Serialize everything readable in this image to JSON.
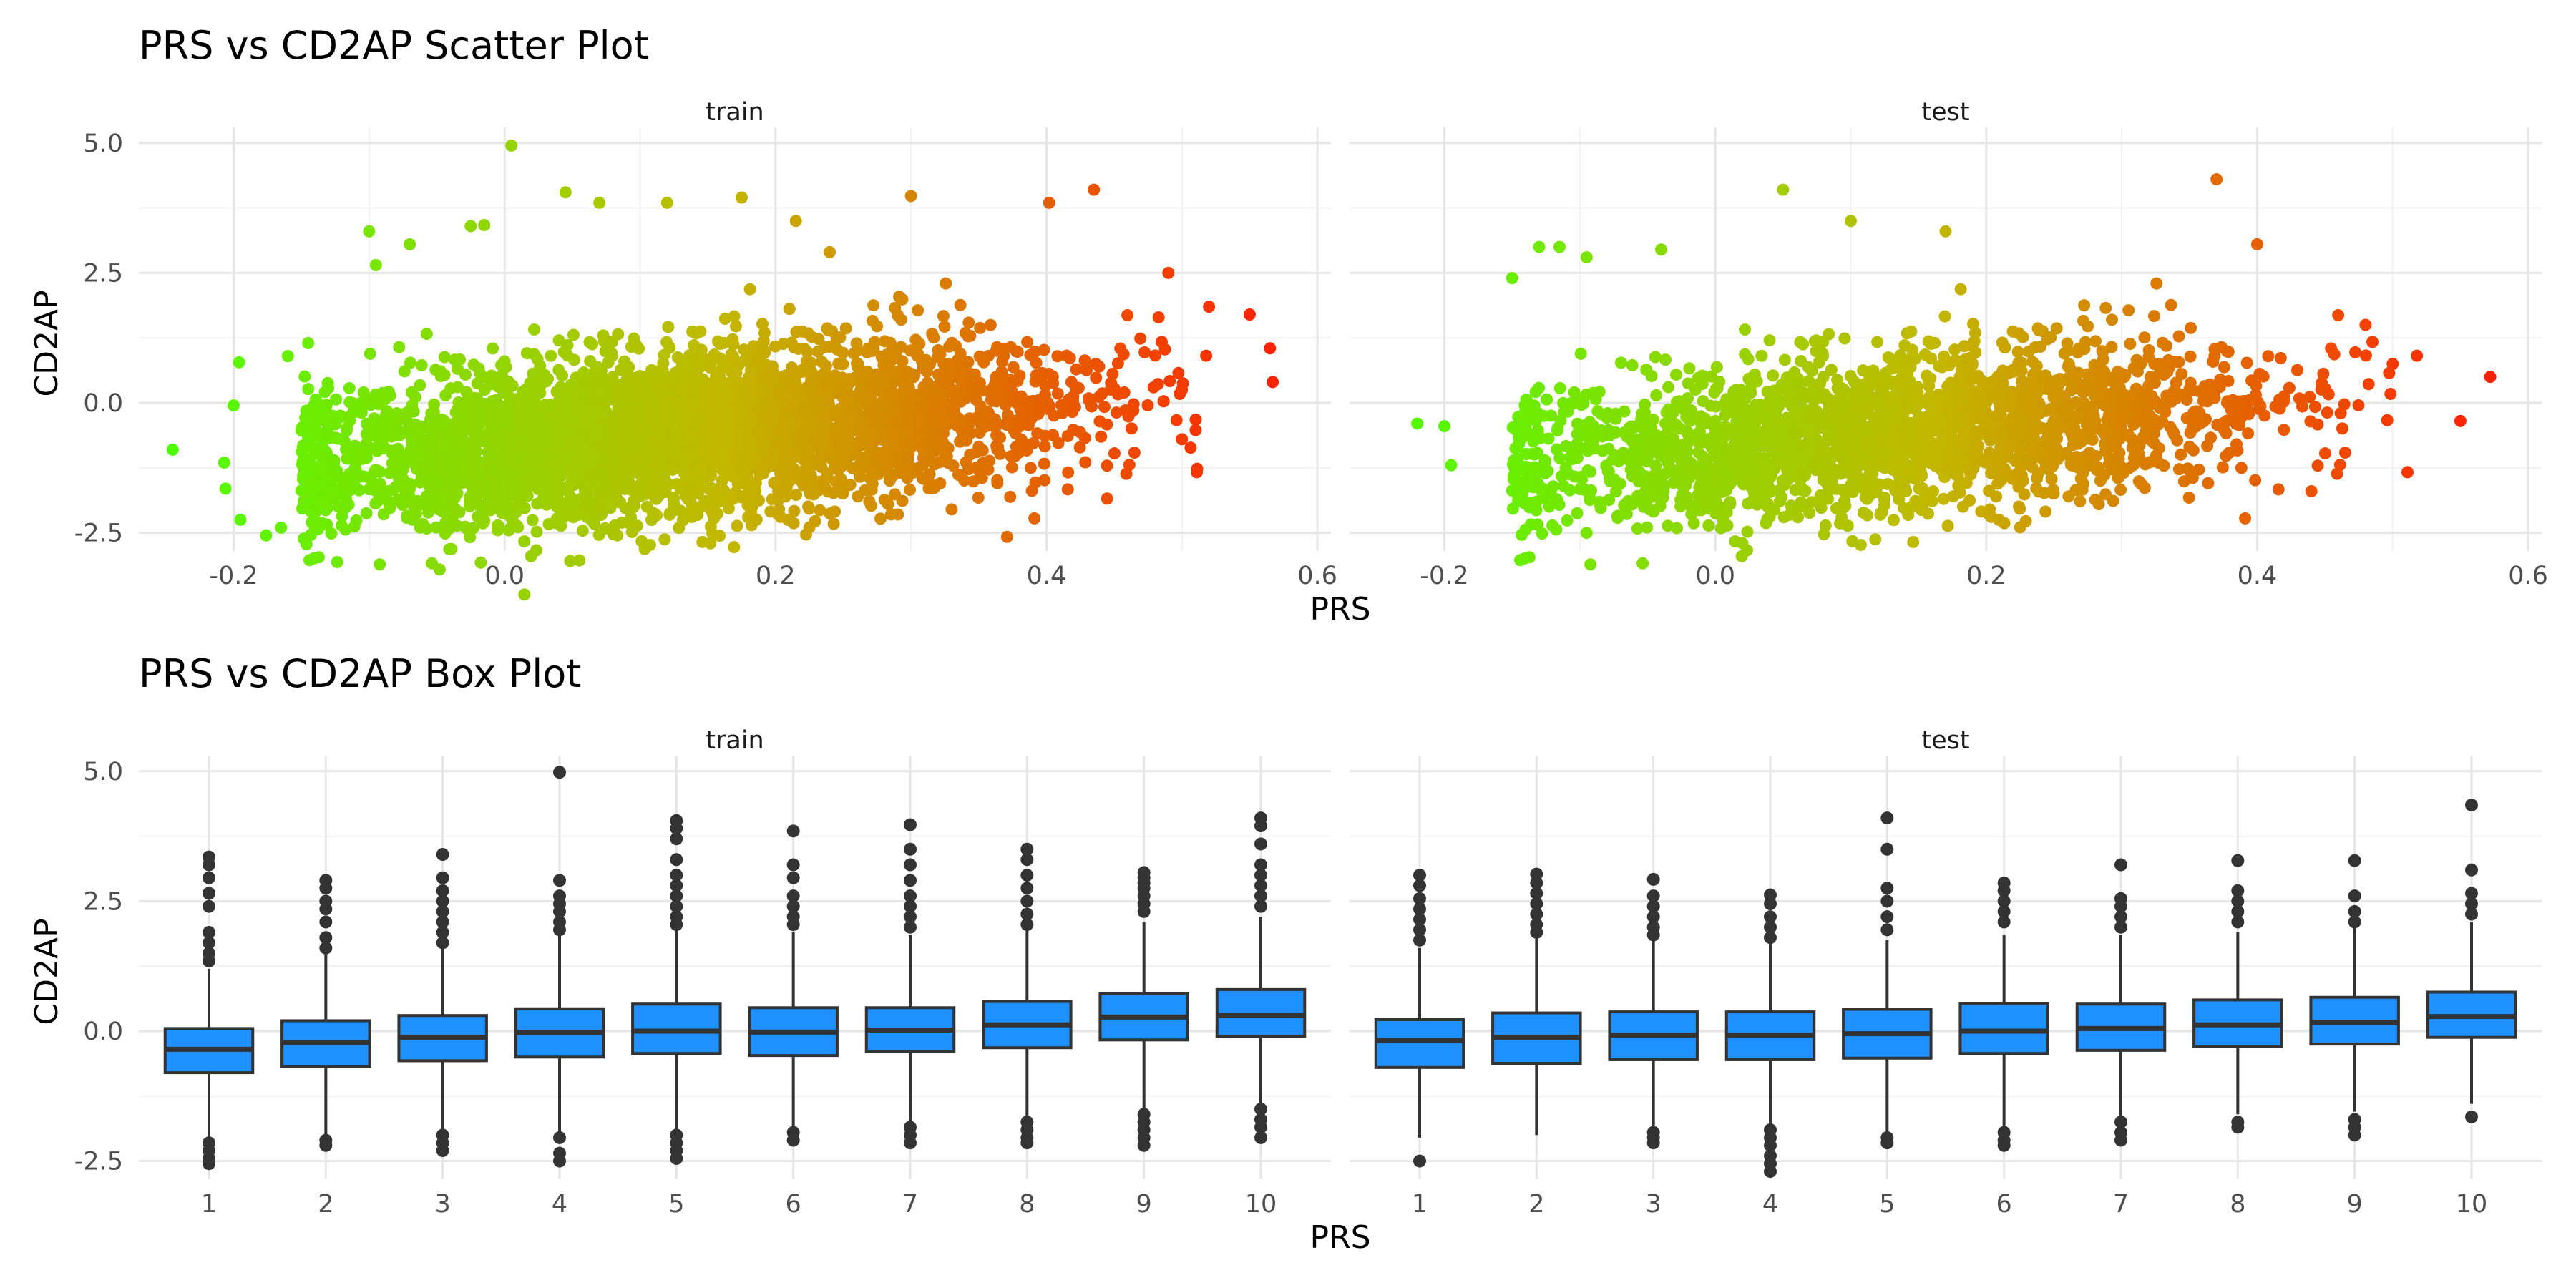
{
  "chart_data": [
    {
      "type": "scatter",
      "title": "PRS vs CD2AP Scatter Plot",
      "xlabel": "PRS",
      "ylabel": "CD2AP",
      "facets": [
        "train",
        "test"
      ],
      "xlim": [
        -0.27,
        0.61
      ],
      "ylim": [
        -2.85,
        5.3
      ],
      "x_ticks": [
        -0.2,
        0.0,
        0.2,
        0.4,
        0.6
      ],
      "x_tick_labels": [
        "-0.2",
        "0.0",
        "0.2",
        "0.4",
        "0.6"
      ],
      "y_ticks": [
        -2.5,
        0.0,
        2.5,
        5.0
      ],
      "y_tick_labels": [
        "-2.5",
        "0.0",
        "2.5",
        "5.0"
      ],
      "grid": true,
      "legend": "none",
      "color_scale": {
        "low": "#4cff00",
        "mid": "#c2b800",
        "high": "#ff2000",
        "mapped_to": "PRS"
      },
      "points": {
        "train": [
          [
            -0.245,
            -0.9
          ],
          [
            -0.207,
            -1.15
          ],
          [
            -0.206,
            -1.65
          ],
          [
            -0.2,
            -0.05
          ],
          [
            -0.196,
            0.78
          ],
          [
            -0.195,
            -2.25
          ],
          [
            -0.176,
            -2.55
          ],
          [
            -0.165,
            -2.4
          ],
          [
            -0.16,
            0.9
          ],
          [
            -0.145,
            1.15
          ],
          [
            -0.1,
            3.3
          ],
          [
            -0.095,
            2.65
          ],
          [
            -0.07,
            3.05
          ],
          [
            -0.025,
            3.4
          ],
          [
            -0.015,
            3.42
          ],
          [
            0.005,
            4.95
          ],
          [
            -0.005,
            -2.45
          ],
          [
            0.045,
            4.05
          ],
          [
            0.08,
            -2.45
          ],
          [
            0.07,
            3.85
          ],
          [
            0.12,
            3.85
          ],
          [
            0.175,
            3.95
          ],
          [
            0.215,
            3.5
          ],
          [
            0.24,
            2.9
          ],
          [
            0.3,
            3.98
          ],
          [
            0.33,
            -2.05
          ],
          [
            0.402,
            3.85
          ],
          [
            0.435,
            4.1
          ],
          [
            0.49,
            2.5
          ],
          [
            0.5,
            -0.7
          ],
          [
            0.52,
            1.85
          ],
          [
            0.55,
            1.7
          ],
          [
            0.565,
            1.05
          ],
          [
            0.567,
            0.4
          ]
        ],
        "test": [
          [
            -0.22,
            -0.4
          ],
          [
            -0.2,
            -0.45
          ],
          [
            -0.195,
            -1.2
          ],
          [
            -0.15,
            2.4
          ],
          [
            -0.13,
            3.0
          ],
          [
            -0.115,
            3.0
          ],
          [
            -0.095,
            2.8
          ],
          [
            -0.095,
            -2.5
          ],
          [
            -0.04,
            2.95
          ],
          [
            0.02,
            -2.7
          ],
          [
            0.05,
            4.1
          ],
          [
            0.1,
            3.5
          ],
          [
            0.17,
            3.3
          ],
          [
            0.37,
            4.3
          ],
          [
            0.4,
            3.05
          ],
          [
            0.44,
            -1.7
          ],
          [
            0.48,
            1.5
          ],
          [
            0.5,
            0.75
          ],
          [
            0.55,
            -0.35
          ],
          [
            0.572,
            0.5
          ]
        ]
      }
    },
    {
      "type": "box",
      "title": "PRS vs CD2AP Box Plot",
      "xlabel": "PRS",
      "ylabel": "CD2AP",
      "facets": [
        "train",
        "test"
      ],
      "categories": [
        "1",
        "2",
        "3",
        "4",
        "5",
        "6",
        "7",
        "8",
        "9",
        "10"
      ],
      "ylim": [
        -2.85,
        5.3
      ],
      "y_ticks": [
        -2.5,
        0.0,
        2.5,
        5.0
      ],
      "y_tick_labels": [
        "-2.5",
        "0.0",
        "2.5",
        "5.0"
      ],
      "fill_color": "#1e90ff",
      "grid": true,
      "boxes": {
        "train": [
          {
            "q1": -0.8,
            "median": -0.35,
            "q3": 0.05,
            "wlow": -2.05,
            "whigh": 1.2,
            "outliers": [
              3.35,
              3.2,
              2.95,
              2.65,
              2.4,
              1.9,
              1.7,
              1.5,
              1.35,
              -2.15,
              -2.3,
              -2.45,
              -2.55
            ]
          },
          {
            "q1": -0.68,
            "median": -0.22,
            "q3": 0.2,
            "wlow": -2.05,
            "whigh": 1.5,
            "outliers": [
              2.9,
              2.75,
              2.5,
              2.35,
              2.1,
              1.8,
              1.6,
              -2.1,
              -2.2
            ]
          },
          {
            "q1": -0.57,
            "median": -0.12,
            "q3": 0.3,
            "wlow": -1.9,
            "whigh": 1.6,
            "outliers": [
              3.4,
              2.95,
              2.7,
              2.5,
              2.3,
              2.1,
              1.9,
              1.7,
              -2.0,
              -2.15,
              -2.3
            ]
          },
          {
            "q1": -0.5,
            "median": -0.03,
            "q3": 0.43,
            "wlow": -1.95,
            "whigh": 1.85,
            "outliers": [
              4.98,
              2.9,
              2.6,
              2.45,
              2.3,
              2.1,
              1.95,
              -2.05,
              -2.35,
              -2.5
            ]
          },
          {
            "q1": -0.43,
            "median": 0.0,
            "q3": 0.52,
            "wlow": -1.95,
            "whigh": 1.95,
            "outliers": [
              4.05,
              3.9,
              3.7,
              3.3,
              3.0,
              2.8,
              2.6,
              2.4,
              2.2,
              2.05,
              -2.0,
              -2.15,
              -2.3,
              -2.45
            ]
          },
          {
            "q1": -0.47,
            "median": -0.02,
            "q3": 0.45,
            "wlow": -1.9,
            "whigh": 1.9,
            "outliers": [
              3.85,
              3.2,
              2.95,
              2.6,
              2.4,
              2.2,
              2.05,
              -1.95,
              -2.1
            ]
          },
          {
            "q1": -0.4,
            "median": 0.02,
            "q3": 0.45,
            "wlow": -1.75,
            "whigh": 1.85,
            "outliers": [
              3.97,
              3.5,
              3.2,
              2.9,
              2.6,
              2.4,
              2.2,
              2.0,
              -1.85,
              -2.0,
              -2.15
            ]
          },
          {
            "q1": -0.32,
            "median": 0.12,
            "q3": 0.57,
            "wlow": -1.65,
            "whigh": 1.95,
            "outliers": [
              3.5,
              3.3,
              3.0,
              2.75,
              2.5,
              2.25,
              2.05,
              -1.75,
              -1.9,
              -2.05,
              -2.15
            ]
          },
          {
            "q1": -0.17,
            "median": 0.27,
            "q3": 0.72,
            "wlow": -1.5,
            "whigh": 2.1,
            "outliers": [
              3.05,
              2.95,
              2.85,
              2.75,
              2.6,
              2.45,
              2.3,
              -1.6,
              -1.75,
              -1.9,
              -2.05,
              -2.2
            ]
          },
          {
            "q1": -0.1,
            "median": 0.3,
            "q3": 0.8,
            "wlow": -1.4,
            "whigh": 2.2,
            "outliers": [
              4.1,
              3.95,
              3.6,
              3.2,
              3.0,
              2.8,
              2.6,
              2.4,
              -1.5,
              -1.7,
              -1.85,
              -2.05
            ]
          }
        ],
        "test": [
          {
            "q1": -0.7,
            "median": -0.18,
            "q3": 0.22,
            "wlow": -2.05,
            "whigh": 1.6,
            "outliers": [
              3.0,
              2.8,
              2.55,
              2.35,
              2.15,
              1.95,
              1.75,
              -2.5
            ]
          },
          {
            "q1": -0.62,
            "median": -0.12,
            "q3": 0.35,
            "wlow": -2.0,
            "whigh": 1.8,
            "outliers": [
              3.02,
              2.85,
              2.65,
              2.45,
              2.25,
              2.05,
              1.9
            ]
          },
          {
            "q1": -0.55,
            "median": -0.08,
            "q3": 0.37,
            "wlow": -1.85,
            "whigh": 1.75,
            "outliers": [
              2.92,
              2.6,
              2.4,
              2.2,
              2.0,
              1.85,
              -1.95,
              -2.05,
              -2.15
            ]
          },
          {
            "q1": -0.55,
            "median": -0.08,
            "q3": 0.37,
            "wlow": -1.85,
            "whigh": 1.7,
            "outliers": [
              2.62,
              2.45,
              2.2,
              2.0,
              1.8,
              -1.9,
              -2.05,
              -2.2,
              -2.4,
              -2.55,
              -2.7
            ]
          },
          {
            "q1": -0.52,
            "median": -0.05,
            "q3": 0.42,
            "wlow": -1.95,
            "whigh": 1.75,
            "outliers": [
              4.1,
              3.5,
              2.75,
              2.5,
              2.2,
              1.95,
              -2.05,
              -2.15
            ]
          },
          {
            "q1": -0.43,
            "median": 0.0,
            "q3": 0.53,
            "wlow": -1.85,
            "whigh": 1.85,
            "outliers": [
              2.85,
              2.7,
              2.5,
              2.3,
              2.1,
              -1.95,
              -2.1,
              -2.2
            ]
          },
          {
            "q1": -0.37,
            "median": 0.05,
            "q3": 0.52,
            "wlow": -1.65,
            "whigh": 1.85,
            "outliers": [
              3.2,
              2.55,
              2.4,
              2.2,
              2.0,
              -1.75,
              -1.95,
              -2.1
            ]
          },
          {
            "q1": -0.3,
            "median": 0.12,
            "q3": 0.6,
            "wlow": -1.6,
            "whigh": 1.9,
            "outliers": [
              3.28,
              2.7,
              2.5,
              2.3,
              2.1,
              -1.75,
              -1.85
            ]
          },
          {
            "q1": -0.25,
            "median": 0.17,
            "q3": 0.65,
            "wlow": -1.55,
            "whigh": 2.0,
            "outliers": [
              3.28,
              2.6,
              2.3,
              2.1,
              -1.7,
              -1.85,
              -2.0
            ]
          },
          {
            "q1": -0.12,
            "median": 0.28,
            "q3": 0.75,
            "wlow": -1.4,
            "whigh": 2.1,
            "outliers": [
              4.35,
              3.1,
              2.65,
              2.45,
              2.25,
              -1.65
            ]
          }
        ]
      }
    }
  ]
}
